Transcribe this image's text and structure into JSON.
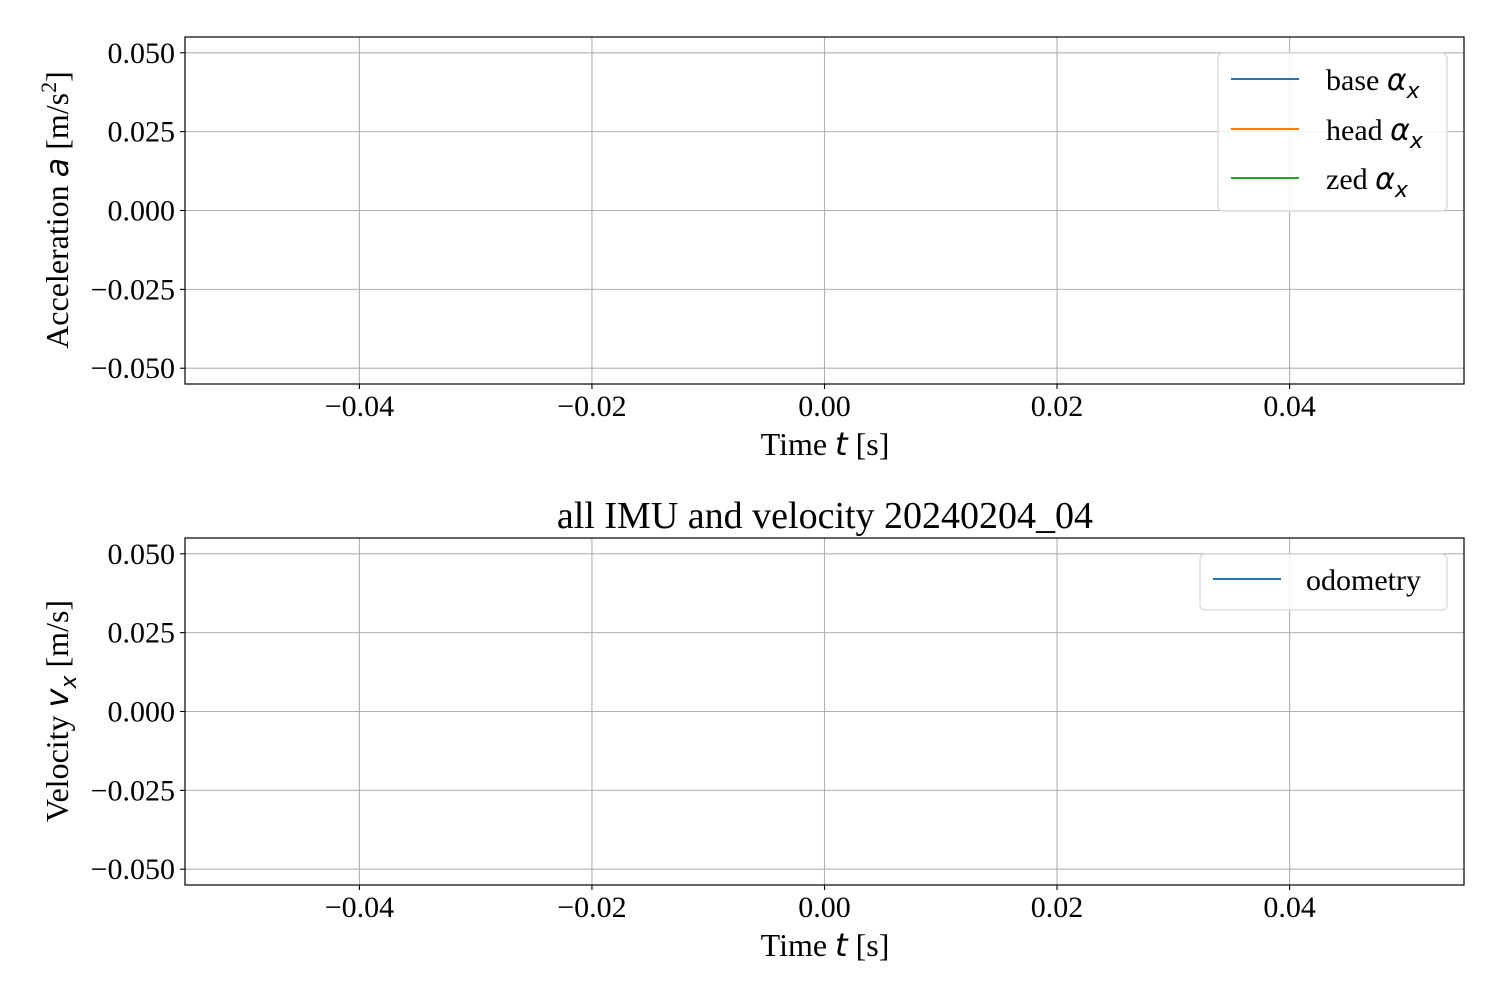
{
  "figure": {
    "title": "all IMU and velocity 20240204_04"
  },
  "chart_data": [
    {
      "type": "line",
      "xlabel": "Time $t$ [s]",
      "ylabel": "Acceleration $a$ [m/s$^2$]",
      "xlim": [
        -0.055,
        0.055
      ],
      "ylim": [
        -0.055,
        0.055
      ],
      "xticks": [
        -0.04,
        -0.02,
        0.0,
        0.02,
        0.04
      ],
      "xtick_labels": [
        "−0.04",
        "−0.02",
        "0.00",
        "0.02",
        "0.04"
      ],
      "yticks": [
        0.05,
        0.025,
        0.0,
        -0.025,
        -0.05
      ],
      "ytick_labels": [
        "0.050",
        "0.025",
        "0.000",
        "−0.025",
        "−0.050"
      ],
      "grid": true,
      "legend_position": "top-right",
      "series": [
        {
          "name": "base α_x",
          "color": "#1f77b4",
          "x": [],
          "y": []
        },
        {
          "name": "head α_x",
          "color": "#ff7f0e",
          "x": [],
          "y": []
        },
        {
          "name": "zed α_x",
          "color": "#2ca02c",
          "x": [],
          "y": []
        }
      ]
    },
    {
      "type": "line",
      "title": "all IMU and velocity 20240204_04",
      "xlabel": "Time $t$ [s]",
      "ylabel": "Velocity $v_x$ [m/s]",
      "xlim": [
        -0.055,
        0.055
      ],
      "ylim": [
        -0.055,
        0.055
      ],
      "xticks": [
        -0.04,
        -0.02,
        0.0,
        0.02,
        0.04
      ],
      "xtick_labels": [
        "−0.04",
        "−0.02",
        "0.00",
        "0.02",
        "0.04"
      ],
      "yticks": [
        0.05,
        0.025,
        0.0,
        -0.025,
        -0.05
      ],
      "ytick_labels": [
        "0.050",
        "0.025",
        "0.000",
        "−0.025",
        "−0.050"
      ],
      "grid": true,
      "legend_position": "top-right",
      "series": [
        {
          "name": "odometry",
          "color": "#1f77b4",
          "x": [],
          "y": []
        }
      ]
    }
  ]
}
